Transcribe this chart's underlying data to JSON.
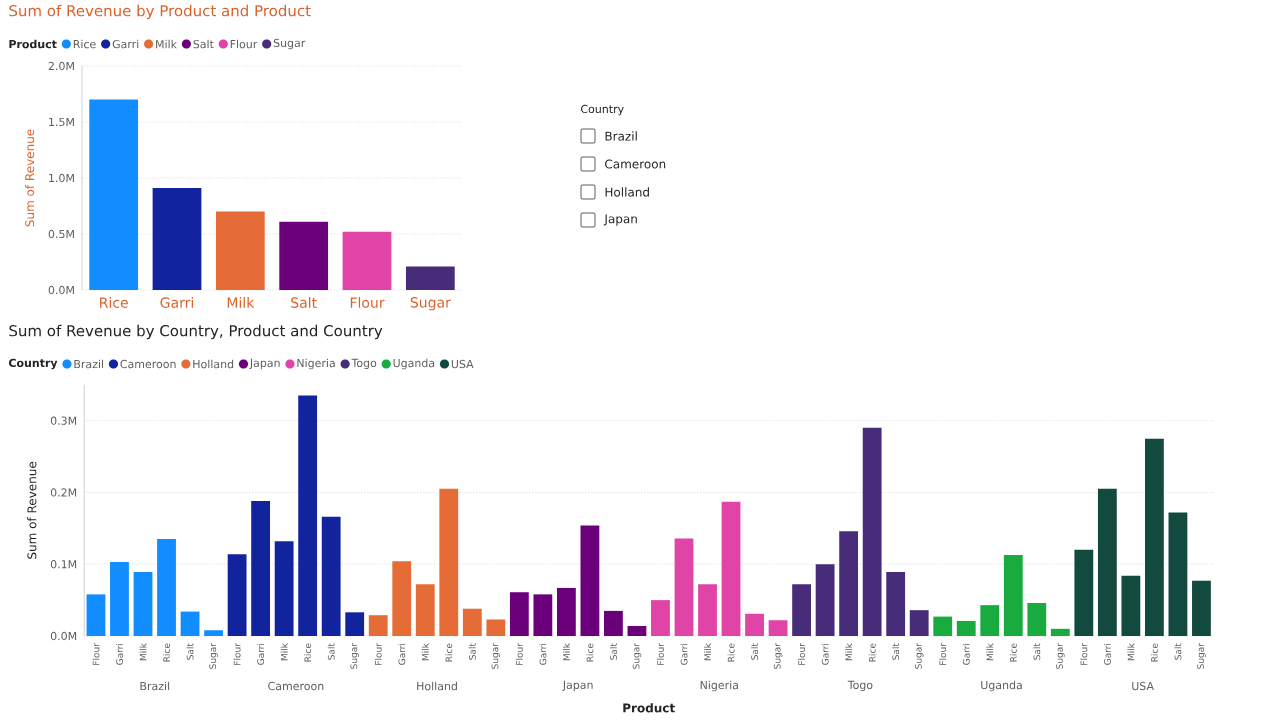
{
  "chart_data": [
    {
      "type": "bar",
      "title": "Sum of Revenue by Product and Product",
      "ylabel": "Sum of Revenue",
      "legend_title": "Product",
      "legend": "top left",
      "grid": "y",
      "categories": [
        "Rice",
        "Garri",
        "Milk",
        "Salt",
        "Flour",
        "Sugar"
      ],
      "series": [
        {
          "name": "Rice",
          "color": "#118dff",
          "values": [
            1.7,
            null,
            null,
            null,
            null,
            null
          ]
        },
        {
          "name": "Garri",
          "color": "#12239e",
          "values": [
            null,
            0.91,
            null,
            null,
            null,
            null
          ]
        },
        {
          "name": "Milk",
          "color": "#e66c37",
          "values": [
            null,
            null,
            0.7,
            null,
            null,
            null
          ]
        },
        {
          "name": "Salt",
          "color": "#6b007b",
          "values": [
            null,
            null,
            null,
            0.61,
            null,
            null
          ]
        },
        {
          "name": "Flour",
          "color": "#e044a7",
          "values": [
            null,
            null,
            null,
            null,
            0.52,
            null
          ]
        },
        {
          "name": "Sugar",
          "color": "#472c79",
          "values": [
            null,
            null,
            null,
            null,
            null,
            0.21
          ]
        }
      ],
      "ylim": [
        0,
        2.0
      ],
      "yticks": [
        {
          "value": 0,
          "label": "0.0M"
        },
        {
          "value": 0.5,
          "label": "0.5M"
        },
        {
          "value": 1.0,
          "label": "1.0M"
        },
        {
          "value": 1.5,
          "label": "1.5M"
        },
        {
          "value": 2.0,
          "label": "2.0M"
        }
      ]
    },
    {
      "type": "other",
      "title": "Country",
      "categories": [
        "Brazil",
        "Cameroon",
        "Holland",
        "Japan"
      ]
    },
    {
      "type": "bar",
      "title": "Sum of Revenue by Country, Product and Country",
      "xlabel": "Product",
      "ylabel": "Sum of Revenue",
      "legend_title": "Country",
      "legend": "top left",
      "grid": "y",
      "categories": [
        "Flour",
        "Garri",
        "Milk",
        "Rice",
        "Salt",
        "Sugar",
        "Flour",
        "Garri",
        "Milk",
        "Rice",
        "Salt",
        "Sugar",
        "Flour",
        "Garri",
        "Milk",
        "Rice",
        "Salt",
        "Sugar",
        "Flour",
        "Garri",
        "Milk",
        "Rice",
        "Salt",
        "Sugar",
        "Flour",
        "Garri",
        "Milk",
        "Rice",
        "Salt",
        "Sugar",
        "Flour",
        "Garri",
        "Milk",
        "Rice",
        "Salt",
        "Sugar",
        "Flour",
        "Garri",
        "Milk",
        "Rice",
        "Salt",
        "Sugar",
        "Flour",
        "Garri",
        "Milk",
        "Rice",
        "Salt",
        "Sugar"
      ],
      "series": [
        {
          "name": "Brazil",
          "color": "#118dff",
          "values": [
            0.058,
            0.103,
            0.089,
            0.135,
            0.034,
            0.008,
            null,
            null,
            null,
            null,
            null,
            null,
            null,
            null,
            null,
            null,
            null,
            null,
            null,
            null,
            null,
            null,
            null,
            null,
            null,
            null,
            null,
            null,
            null,
            null,
            null,
            null,
            null,
            null,
            null,
            null,
            null,
            null,
            null,
            null,
            null,
            null,
            null,
            null,
            null,
            null,
            null,
            null
          ]
        },
        {
          "name": "Cameroon",
          "color": "#12239e",
          "values": [
            null,
            null,
            null,
            null,
            null,
            null,
            0.114,
            0.188,
            0.132,
            0.335,
            0.166,
            0.033,
            null,
            null,
            null,
            null,
            null,
            null,
            null,
            null,
            null,
            null,
            null,
            null,
            null,
            null,
            null,
            null,
            null,
            null,
            null,
            null,
            null,
            null,
            null,
            null,
            null,
            null,
            null,
            null,
            null,
            null,
            null,
            null,
            null,
            null,
            null,
            null
          ]
        },
        {
          "name": "Holland",
          "color": "#e66c37",
          "values": [
            null,
            null,
            null,
            null,
            null,
            null,
            null,
            null,
            null,
            null,
            null,
            null,
            0.029,
            0.104,
            0.072,
            0.205,
            0.038,
            0.023,
            null,
            null,
            null,
            null,
            null,
            null,
            null,
            null,
            null,
            null,
            null,
            null,
            null,
            null,
            null,
            null,
            null,
            null,
            null,
            null,
            null,
            null,
            null,
            null,
            null,
            null,
            null,
            null,
            null,
            null
          ]
        },
        {
          "name": "Japan",
          "color": "#6b007b",
          "values": [
            null,
            null,
            null,
            null,
            null,
            null,
            null,
            null,
            null,
            null,
            null,
            null,
            null,
            null,
            null,
            null,
            null,
            null,
            0.061,
            0.058,
            0.067,
            0.154,
            0.035,
            0.014,
            null,
            null,
            null,
            null,
            null,
            null,
            null,
            null,
            null,
            null,
            null,
            null,
            null,
            null,
            null,
            null,
            null,
            null,
            null,
            null,
            null,
            null,
            null,
            null
          ]
        },
        {
          "name": "Nigeria",
          "color": "#e044a7",
          "values": [
            null,
            null,
            null,
            null,
            null,
            null,
            null,
            null,
            null,
            null,
            null,
            null,
            null,
            null,
            null,
            null,
            null,
            null,
            null,
            null,
            null,
            null,
            null,
            null,
            0.05,
            0.136,
            0.072,
            0.187,
            0.031,
            0.022,
            null,
            null,
            null,
            null,
            null,
            null,
            null,
            null,
            null,
            null,
            null,
            null,
            null,
            null,
            null,
            null,
            null,
            null
          ]
        },
        {
          "name": "Togo",
          "color": "#472c79",
          "values": [
            null,
            null,
            null,
            null,
            null,
            null,
            null,
            null,
            null,
            null,
            null,
            null,
            null,
            null,
            null,
            null,
            null,
            null,
            null,
            null,
            null,
            null,
            null,
            null,
            null,
            null,
            null,
            null,
            null,
            null,
            0.072,
            0.1,
            0.146,
            0.29,
            0.089,
            0.036,
            null,
            null,
            null,
            null,
            null,
            null,
            null,
            null,
            null,
            null,
            null,
            null
          ]
        },
        {
          "name": "Uganda",
          "color": "#1aab40",
          "values": [
            null,
            null,
            null,
            null,
            null,
            null,
            null,
            null,
            null,
            null,
            null,
            null,
            null,
            null,
            null,
            null,
            null,
            null,
            null,
            null,
            null,
            null,
            null,
            null,
            null,
            null,
            null,
            null,
            null,
            null,
            null,
            null,
            null,
            null,
            null,
            null,
            0.027,
            0.021,
            0.043,
            0.113,
            0.046,
            0.01,
            null,
            null,
            null,
            null,
            null,
            null
          ]
        },
        {
          "name": "USA",
          "color": "#124a3f",
          "values": [
            null,
            null,
            null,
            null,
            null,
            null,
            null,
            null,
            null,
            null,
            null,
            null,
            null,
            null,
            null,
            null,
            null,
            null,
            null,
            null,
            null,
            null,
            null,
            null,
            null,
            null,
            null,
            null,
            null,
            null,
            null,
            null,
            null,
            null,
            null,
            null,
            null,
            null,
            null,
            null,
            null,
            null,
            0.12,
            0.205,
            0.084,
            0.275,
            0.172,
            0.077
          ]
        }
      ],
      "ylim": [
        0,
        0.35
      ],
      "yticks": [
        {
          "value": 0,
          "label": "0.0M"
        },
        {
          "value": 0.1,
          "label": "0.1M"
        },
        {
          "value": 0.2,
          "label": "0.2M"
        },
        {
          "value": 0.3,
          "label": "0.3M"
        }
      ]
    }
  ]
}
